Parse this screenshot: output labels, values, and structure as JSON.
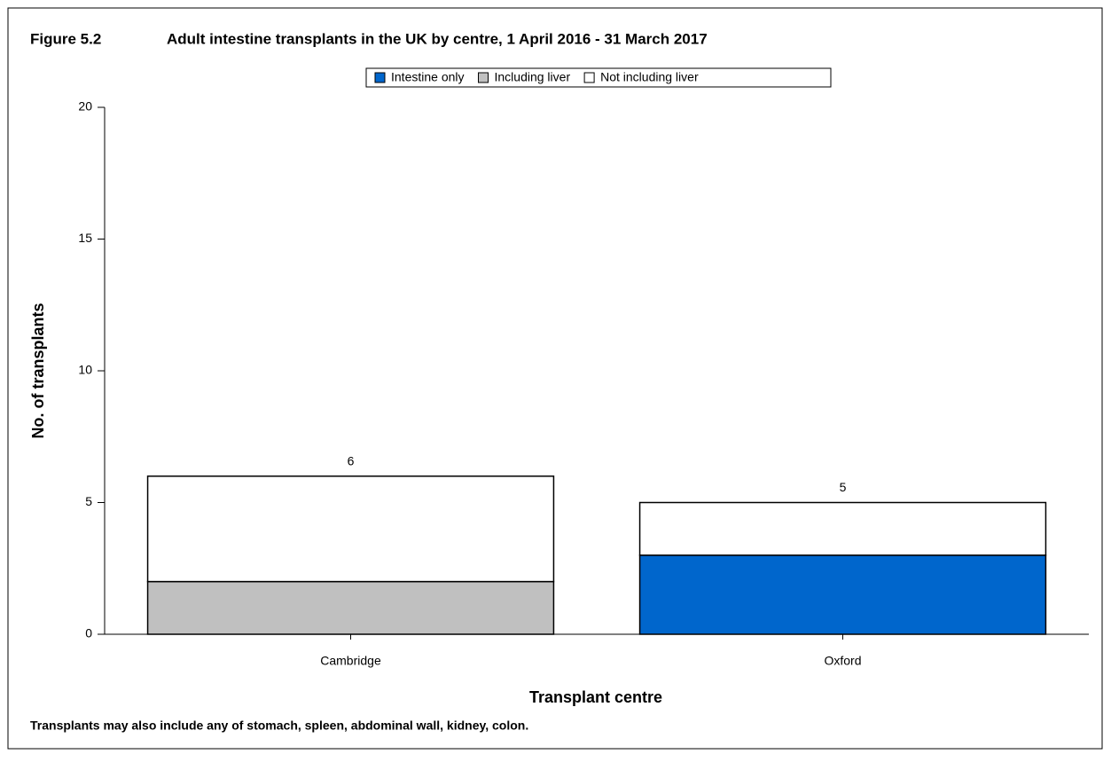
{
  "chart_data": {
    "type": "stacked-bar",
    "figure_label": "Figure 5.2",
    "title": "Adult intestine transplants in the UK by centre, 1 April 2016 - 31 March 2017",
    "x_label": "Transplant centre",
    "y_label": "No. of transplants",
    "note": "Transplants may also include any of stomach, spleen, abdominal wall, kidney, colon.",
    "categories": [
      "Cambridge",
      "Oxford"
    ],
    "series": [
      {
        "name": "Intestine only",
        "color": "#0066cc",
        "values": [
          0,
          3
        ]
      },
      {
        "name": "Including liver",
        "color": "#c0c0c0",
        "values": [
          2,
          0
        ]
      },
      {
        "name": "Not including liver",
        "color": "#ffffff",
        "values": [
          4,
          2
        ]
      }
    ],
    "totals": [
      6,
      5
    ],
    "ylim": [
      0,
      20
    ],
    "yticks": [
      0,
      5,
      10,
      15,
      20
    ]
  }
}
